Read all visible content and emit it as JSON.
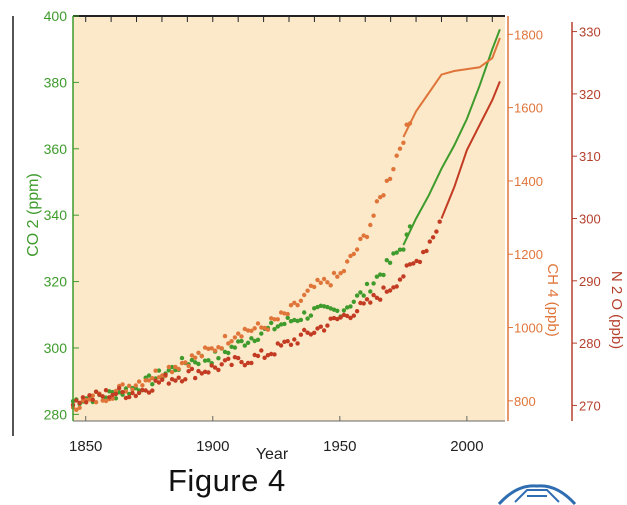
{
  "figure_caption": "Figure 4",
  "colors": {
    "plot_bg": "#fbe9c9",
    "co2": "#3e9b2c",
    "ch4": "#e0753a",
    "n2o": "#c23b22",
    "n2o_axis": "#b5402d"
  },
  "chart_data": {
    "type": "line",
    "xlabel": "Year",
    "xlim": [
      1845,
      2015
    ],
    "x_ticks": [
      1850,
      1900,
      1950,
      2000
    ],
    "axes": {
      "co2": {
        "label": "CO 2 (ppm)",
        "lim": [
          278,
          400
        ],
        "ticks": [
          280,
          300,
          320,
          340,
          360,
          380,
          400
        ]
      },
      "ch4": {
        "label": "CH 4 (ppb)",
        "lim": [
          745,
          1850
        ],
        "ticks": [
          800,
          1000,
          1200,
          1400,
          1600,
          1800
        ]
      },
      "n2o": {
        "label": "N 2 O (ppb)",
        "lim": [
          267.5,
          332.5
        ],
        "ticks": [
          270,
          280,
          290,
          300,
          310,
          320,
          330
        ]
      }
    },
    "series": [
      {
        "axis": "co2",
        "years": [
          1845,
          1850,
          1860,
          1870,
          1880,
          1890,
          1900,
          1910,
          1920,
          1930,
          1940,
          1950,
          1960,
          1970,
          1975,
          1980,
          1985,
          1990,
          1995,
          2000,
          2005,
          2010,
          2013
        ],
        "values": [
          284,
          285,
          286,
          288,
          292,
          296,
          297,
          301,
          305,
          308,
          311,
          311,
          317,
          326,
          331,
          339,
          346,
          354,
          361,
          369,
          379,
          390,
          396
        ],
        "scattered_until": 1978
      },
      {
        "axis": "ch4",
        "years": [
          1845,
          1850,
          1860,
          1870,
          1880,
          1890,
          1900,
          1910,
          1920,
          1930,
          1940,
          1950,
          1960,
          1970,
          1975,
          1980,
          1985,
          1990,
          1995,
          2000,
          2005,
          2010,
          2013
        ],
        "values": [
          790,
          795,
          820,
          850,
          880,
          910,
          940,
          990,
          1000,
          1040,
          1110,
          1140,
          1250,
          1420,
          1520,
          1590,
          1640,
          1690,
          1700,
          1705,
          1710,
          1735,
          1790
        ],
        "scattered_until": 1978
      },
      {
        "axis": "n2o",
        "years": [
          1845,
          1850,
          1860,
          1870,
          1880,
          1890,
          1900,
          1910,
          1920,
          1930,
          1940,
          1950,
          1960,
          1970,
          1975,
          1980,
          1985,
          1990,
          1995,
          2000,
          2005,
          2010,
          2013
        ],
        "values": [
          271,
          271,
          272,
          272,
          274,
          275,
          276,
          277,
          278,
          280,
          282,
          284,
          286,
          289,
          291,
          293,
          296,
          300,
          305,
          311,
          315,
          319,
          322
        ],
        "scattered_until": 1990
      }
    ]
  }
}
